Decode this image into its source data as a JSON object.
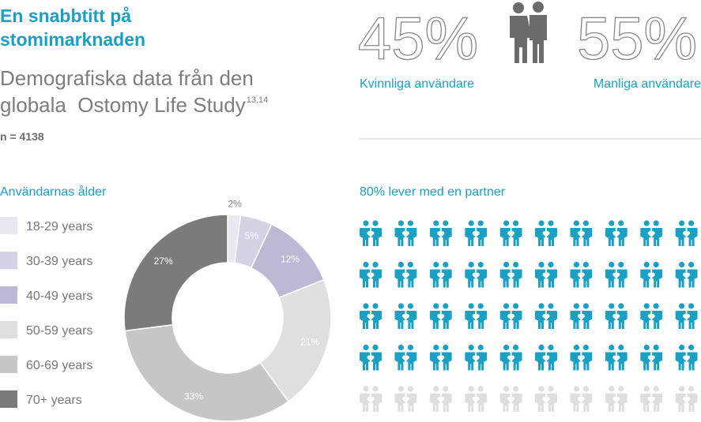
{
  "header": {
    "title_lines": [
      "En snabbtitt på",
      "stomimarknaden"
    ],
    "subtitle_lines": [
      "Demografiska data från den",
      "globala  Ostomy Life Study"
    ],
    "superscript": "13,14",
    "sample": "n = 4138"
  },
  "gender": [
    {
      "value_label": "45%",
      "label": "Kvinnliga användare"
    },
    {
      "value_label": "55%",
      "label": "Manliga användare"
    }
  ],
  "chart_data": [
    {
      "type": "donut",
      "title": "Användarnas ålder",
      "categories": [
        "18-29 years",
        "30-39 years",
        "40-49 years",
        "50-59 years",
        "60-69 years",
        "70+ years"
      ],
      "values": [
        2,
        5,
        12,
        21,
        33,
        27
      ],
      "value_labels": [
        "2%",
        "5%",
        "12%",
        "21%",
        "33%",
        "27%"
      ],
      "colors": [
        "#e9e7f0",
        "#d6d2e5",
        "#bdb8d4",
        "#dfdfdf",
        "#c6c6c6",
        "#7b7b7b"
      ]
    },
    {
      "type": "pictogram",
      "title": "80% lever med en partner",
      "value": 80,
      "colors": [
        "#1aa0c4",
        "#dedede"
      ]
    }
  ]
}
